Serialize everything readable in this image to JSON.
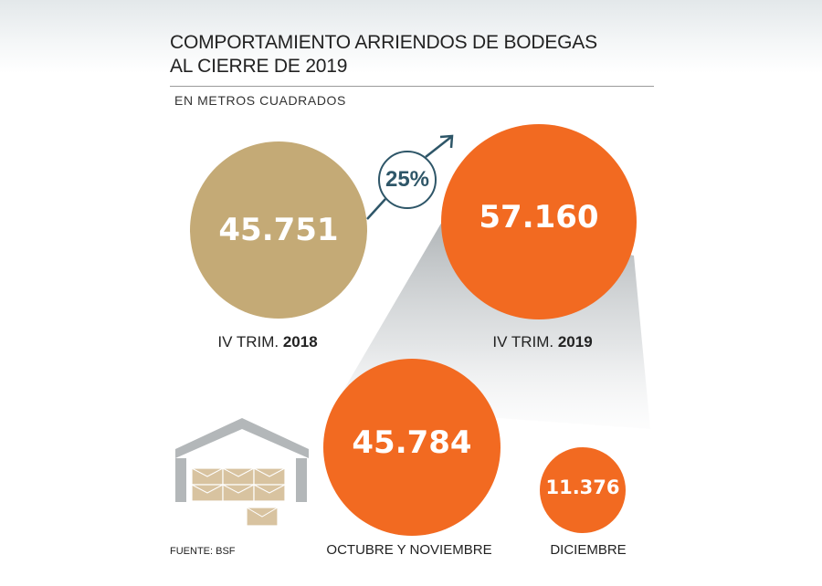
{
  "title_line1": "COMPORTAMIENTO ARRIENDOS DE BODEGAS",
  "title_line2": "AL CIERRE DE 2019",
  "subtitle": "EN METROS CUADRADOS",
  "growth_label": "25%",
  "source": "FUENTE: BSF",
  "colors": {
    "gold": "#c4aa76",
    "orange": "#f26a21",
    "arrow": "#2e5668",
    "warehouse": "#b3b7b9"
  },
  "icons": [
    "warehouse-icon",
    "arrow-up-right-icon"
  ],
  "chart_data": {
    "type": "bubble",
    "title": "COMPORTAMIENTO ARRIENDOS DE BODEGAS AL CIERRE DE 2019",
    "unit": "EN METROS CUADRADOS",
    "items": [
      {
        "key": "q4_2018",
        "label_pre": "IV TRIM. ",
        "label_bold": "2018",
        "value": 45751,
        "display": "45.751",
        "color": "#c4aa76"
      },
      {
        "key": "q4_2019",
        "label_pre": "IV TRIM. ",
        "label_bold": "2019",
        "value": 57160,
        "display": "57.160",
        "color": "#f26a21"
      },
      {
        "key": "oct_nov",
        "label_pre": "OCTUBRE Y NOVIEMBRE",
        "label_bold": "",
        "value": 45784,
        "display": "45.784",
        "color": "#f26a21"
      },
      {
        "key": "dic",
        "label_pre": "DICIEMBRE",
        "label_bold": "",
        "value": 11376,
        "display": "11.376",
        "color": "#f26a21"
      }
    ],
    "growth": "25%"
  }
}
